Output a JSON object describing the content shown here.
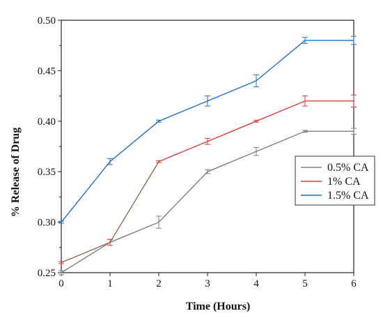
{
  "chart_data": {
    "type": "line",
    "xlabel": "Time (Hours)",
    "ylabel": "% Release of Drug",
    "xlim": [
      0,
      6
    ],
    "ylim": [
      0.25,
      0.5
    ],
    "x_ticks": [
      "0",
      "1",
      "2",
      "3",
      "4",
      "5",
      "6"
    ],
    "y_ticks": [
      "0.25",
      "0.30",
      "0.35",
      "0.40",
      "0.45",
      "0.50"
    ],
    "grid": false,
    "legend_position": "right",
    "x": [
      0,
      1,
      2,
      3,
      4,
      5,
      6
    ],
    "series": [
      {
        "name": "0.5% CA",
        "color": "#7f7f7f",
        "values": [
          0.25,
          0.28,
          0.3,
          0.35,
          0.37,
          0.39,
          0.39
        ],
        "errors": [
          0.002,
          0.003,
          0.006,
          0.002,
          0.004,
          0.001,
          0.003
        ]
      },
      {
        "name": "1% CA",
        "color": "#e8393a",
        "values": [
          0.26,
          0.28,
          0.36,
          0.38,
          0.4,
          0.42,
          0.42
        ],
        "errors": [
          0.001,
          0.003,
          0.001,
          0.003,
          0.001,
          0.005,
          0.006
        ]
      },
      {
        "name": "1.5% CA",
        "color": "#1f6fd1",
        "values": [
          0.3,
          0.36,
          0.4,
          0.42,
          0.44,
          0.48,
          0.48
        ],
        "errors": [
          0.001,
          0.003,
          0.001,
          0.005,
          0.006,
          0.003,
          0.004
        ]
      }
    ],
    "segment_colors_note_series": "1% CA",
    "segment_colors": [
      "#8b6a4f",
      "#8b6a4f",
      "#e8393a",
      "#e8393a",
      "#e8393a",
      "#e8393a"
    ]
  }
}
